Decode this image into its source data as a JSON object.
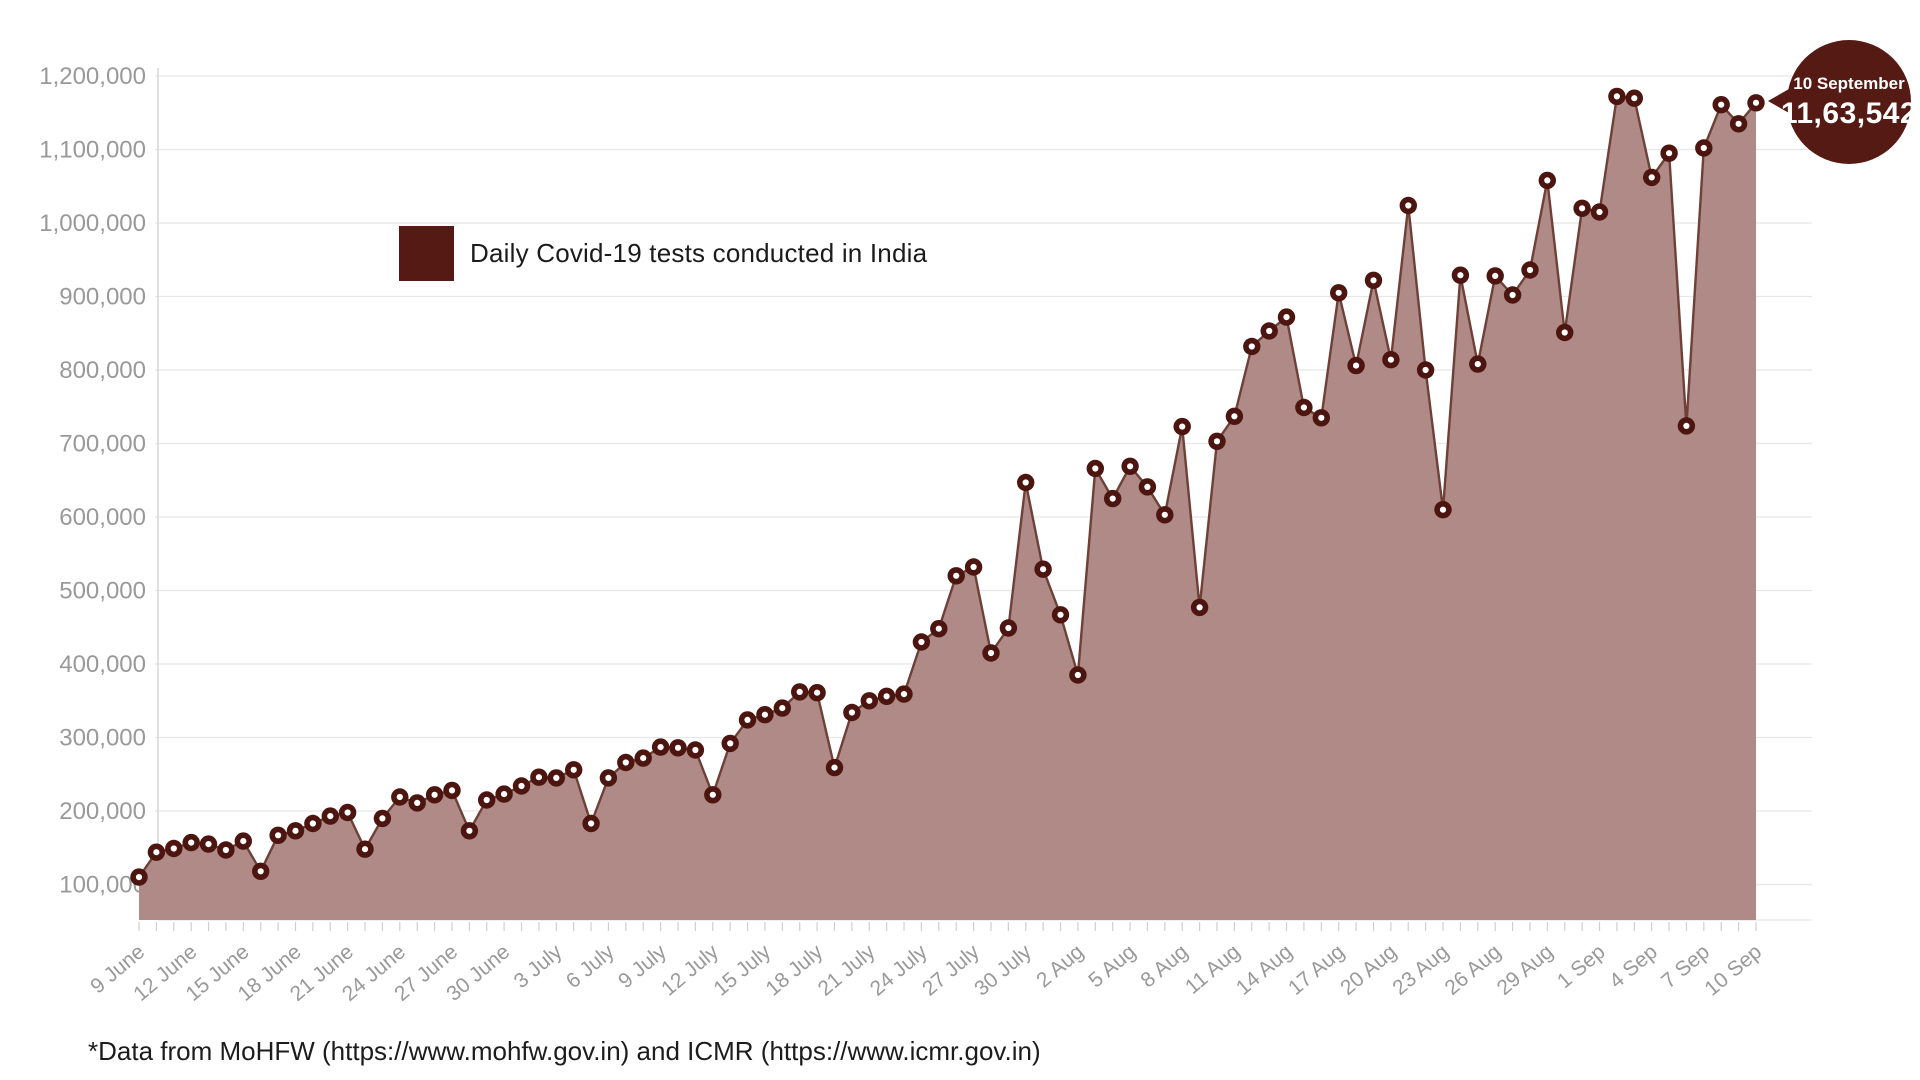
{
  "legend": {
    "swatch_color": "#541a13"
  },
  "footer": {
    "note": "*Data from MoHFW (https://www.mohfw.gov.in) and ICMR (https://www.icmr.gov.in)"
  },
  "chart_data": {
    "type": "area",
    "title": "Daily Covid-19 tests conducted in India",
    "legend_position": "top-left-inside",
    "grid": "horizontal",
    "x": [
      "9 June",
      "10 June",
      "11 June",
      "12 June",
      "13 June",
      "14 June",
      "15 June",
      "16 June",
      "17 June",
      "18 June",
      "19 June",
      "20 June",
      "21 June",
      "22 June",
      "23 June",
      "24 June",
      "25 June",
      "26 June",
      "27 June",
      "28 June",
      "29 June",
      "30 June",
      "1 July",
      "2 July",
      "3 July",
      "4 July",
      "5 July",
      "6 July",
      "7 July",
      "8 July",
      "9 July",
      "10 July",
      "11 July",
      "12 July",
      "13 July",
      "14 July",
      "15 July",
      "16 July",
      "17 July",
      "18 July",
      "19 July",
      "20 July",
      "21 July",
      "22 July",
      "23 July",
      "24 July",
      "25 July",
      "26 July",
      "27 July",
      "28 July",
      "29 July",
      "30 July",
      "31 July",
      "1 Aug",
      "2 Aug",
      "3 Aug",
      "4 Aug",
      "5 Aug",
      "6 Aug",
      "7 Aug",
      "8 Aug",
      "9 Aug",
      "10 Aug",
      "11 Aug",
      "12 Aug",
      "13 Aug",
      "14 Aug",
      "15 Aug",
      "16 Aug",
      "17 Aug",
      "18 Aug",
      "19 Aug",
      "20 Aug",
      "21 Aug",
      "22 Aug",
      "23 Aug",
      "24 Aug",
      "25 Aug",
      "26 Aug",
      "27 Aug",
      "28 Aug",
      "29 Aug",
      "30 Aug",
      "31 Aug",
      "1 Sep",
      "2 Sep",
      "3 Sep",
      "4 Sep",
      "5 Sep",
      "6 Sep",
      "7 Sep",
      "8 Sep",
      "9 Sep",
      "10 Sep"
    ],
    "values": [
      110000,
      144000,
      149000,
      157000,
      155000,
      147000,
      159000,
      118000,
      167000,
      173000,
      183000,
      193000,
      198000,
      148000,
      190000,
      219000,
      211000,
      222000,
      228000,
      173000,
      215000,
      223000,
      234000,
      246000,
      245000,
      256000,
      183000,
      245000,
      266000,
      272000,
      287000,
      286000,
      283000,
      222000,
      292000,
      324000,
      331000,
      340000,
      362000,
      361000,
      259000,
      334000,
      350000,
      356000,
      359000,
      430000,
      448000,
      520000,
      532000,
      415000,
      449000,
      647000,
      529000,
      467000,
      385000,
      666000,
      625000,
      669000,
      641000,
      603000,
      723000,
      477000,
      703000,
      737000,
      832000,
      853000,
      872000,
      749000,
      735000,
      905000,
      806000,
      922000,
      814000,
      1023836,
      800000,
      609917,
      929000,
      808000,
      928000,
      902000,
      936000,
      1058000,
      851000,
      1020000,
      1015000,
      1172179,
      1169765,
      1062000,
      1095000,
      724000,
      1102000,
      1161000,
      1135000,
      1163542
    ],
    "x_tick_every": 3,
    "x_tick_labels": [
      "9 June",
      "12 June",
      "15 June",
      "18 June",
      "21 June",
      "24 June",
      "27 June",
      "30 June",
      "3 July",
      "6 July",
      "9 July",
      "12 July",
      "15 July",
      "18 July",
      "21 July",
      "24 July",
      "27 July",
      "30 July",
      "2 Aug",
      "5 Aug",
      "8 Aug",
      "11 Aug",
      "14 Aug",
      "17 Aug",
      "20 Aug",
      "23 Aug",
      "26 Aug",
      "29 Aug",
      "1 Sep",
      "4 Sep",
      "7 Sep",
      "10 Sep"
    ],
    "y_ticks": [
      100000,
      200000,
      300000,
      400000,
      500000,
      600000,
      700000,
      800000,
      900000,
      1000000,
      1100000,
      1200000
    ],
    "y_tick_labels": [
      "100,000",
      "200,000",
      "300,000",
      "400,000",
      "500,000",
      "600,000",
      "700,000",
      "800,000",
      "900,000",
      "1,000,000",
      "1,100,000",
      "1,200,000"
    ],
    "ylim": [
      50000,
      1225000
    ],
    "annotation": {
      "x": "10 Sep",
      "date_label": "10 September",
      "value_label": "11,63,542",
      "value": 1163542
    },
    "colors": {
      "accent": "#541a13",
      "area_fill": "#af8a86",
      "line": "#6e4038",
      "marker": "#4d1510",
      "marker_center": "#ffffff",
      "grid": "#e7e7e7",
      "axis_line": "#d5d5d5",
      "axis_text": "#999999"
    }
  }
}
